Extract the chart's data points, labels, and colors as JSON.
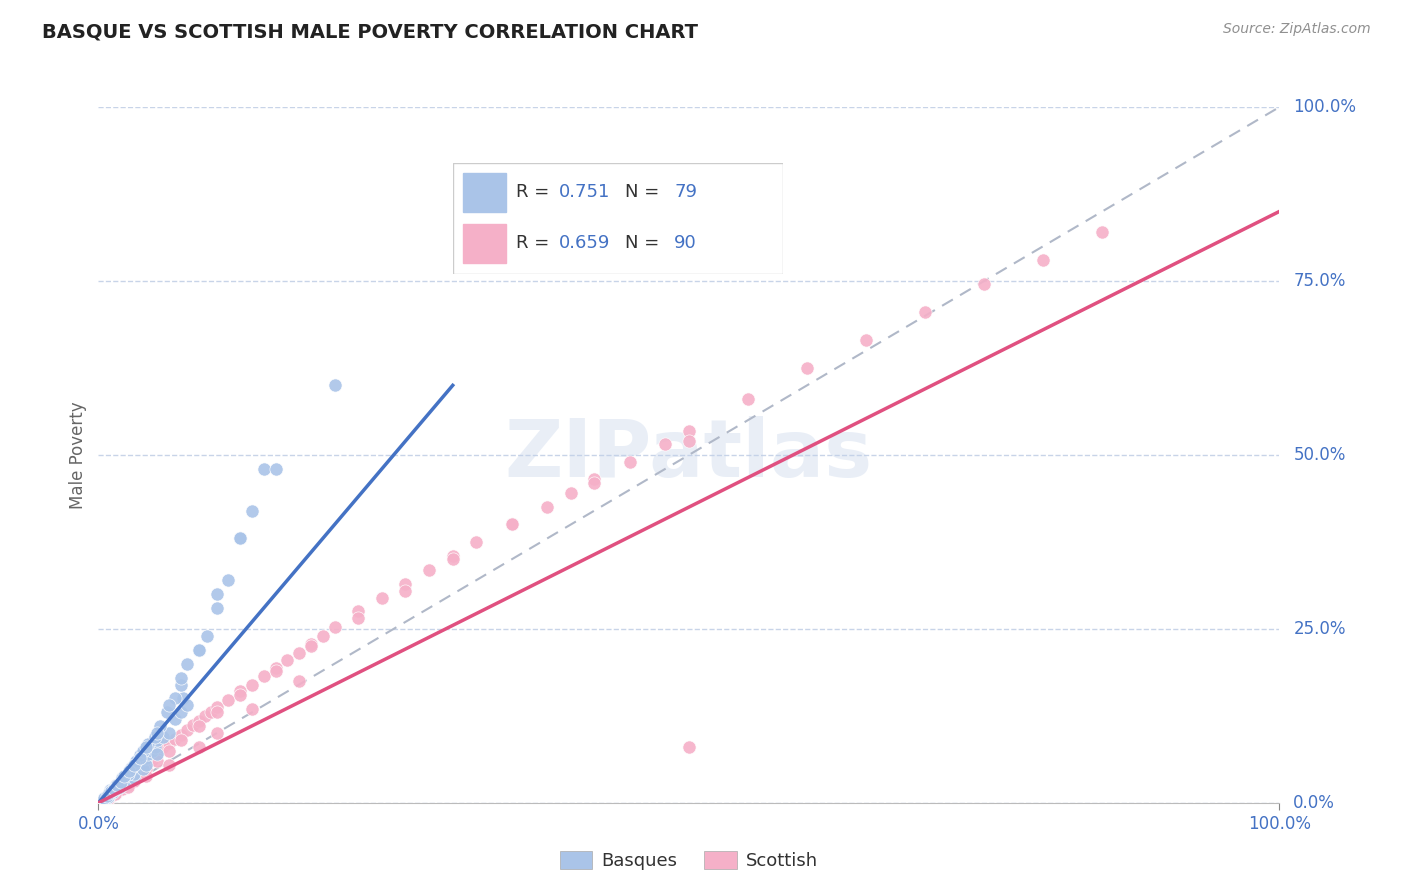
{
  "title": "BASQUE VS SCOTTISH MALE POVERTY CORRELATION CHART",
  "source": "Source: ZipAtlas.com",
  "ylabel": "Male Poverty",
  "xlim": [
    0,
    1
  ],
  "ylim": [
    0,
    1
  ],
  "basque_R": 0.751,
  "basque_N": 79,
  "scottish_R": 0.659,
  "scottish_N": 90,
  "basque_color": "#aac4e8",
  "scottish_color": "#f5b0c8",
  "basque_line_color": "#4472c4",
  "scottish_line_color": "#e05080",
  "diagonal_color": "#b0b8c8",
  "grid_color": "#c8d4e8",
  "title_color": "#222222",
  "source_color": "#909090",
  "legend_text_color": "#4472c4",
  "basque_line_x": [
    0.0,
    0.3
  ],
  "basque_line_y": [
    0.0,
    0.6
  ],
  "scottish_line_x": [
    0.0,
    1.0
  ],
  "scottish_line_y": [
    0.0,
    0.85
  ],
  "basque_scatter_x": [
    0.005,
    0.008,
    0.01,
    0.01,
    0.012,
    0.015,
    0.015,
    0.018,
    0.02,
    0.02,
    0.02,
    0.022,
    0.025,
    0.025,
    0.028,
    0.03,
    0.03,
    0.03,
    0.032,
    0.035,
    0.038,
    0.04,
    0.04,
    0.042,
    0.045,
    0.048,
    0.05,
    0.05,
    0.055,
    0.06,
    0.065,
    0.07,
    0.072,
    0.075,
    0.008,
    0.01,
    0.012,
    0.015,
    0.018,
    0.02,
    0.025,
    0.028,
    0.032,
    0.035,
    0.038,
    0.042,
    0.048,
    0.052,
    0.058,
    0.065,
    0.07,
    0.075,
    0.085,
    0.092,
    0.1,
    0.11,
    0.12,
    0.13,
    0.14,
    0.005,
    0.007,
    0.009,
    0.011,
    0.013,
    0.016,
    0.019,
    0.022,
    0.026,
    0.03,
    0.035,
    0.04,
    0.05,
    0.06,
    0.07,
    0.085,
    0.1,
    0.12,
    0.15,
    0.2
  ],
  "basque_scatter_y": [
    0.006,
    0.009,
    0.012,
    0.018,
    0.015,
    0.02,
    0.025,
    0.022,
    0.03,
    0.035,
    0.025,
    0.028,
    0.04,
    0.032,
    0.045,
    0.035,
    0.05,
    0.042,
    0.055,
    0.06,
    0.048,
    0.065,
    0.055,
    0.07,
    0.075,
    0.08,
    0.09,
    0.07,
    0.095,
    0.1,
    0.12,
    0.13,
    0.15,
    0.14,
    0.008,
    0.015,
    0.018,
    0.022,
    0.028,
    0.035,
    0.042,
    0.05,
    0.06,
    0.068,
    0.075,
    0.085,
    0.095,
    0.11,
    0.13,
    0.15,
    0.17,
    0.2,
    0.22,
    0.24,
    0.28,
    0.32,
    0.38,
    0.42,
    0.48,
    0.007,
    0.01,
    0.014,
    0.017,
    0.02,
    0.025,
    0.03,
    0.038,
    0.045,
    0.055,
    0.065,
    0.08,
    0.1,
    0.14,
    0.18,
    0.22,
    0.3,
    0.38,
    0.48,
    0.6
  ],
  "scottish_scatter_x": [
    0.005,
    0.008,
    0.01,
    0.012,
    0.015,
    0.018,
    0.02,
    0.022,
    0.025,
    0.028,
    0.03,
    0.032,
    0.035,
    0.038,
    0.04,
    0.042,
    0.045,
    0.048,
    0.05,
    0.055,
    0.06,
    0.065,
    0.07,
    0.075,
    0.08,
    0.085,
    0.09,
    0.095,
    0.1,
    0.11,
    0.12,
    0.13,
    0.14,
    0.15,
    0.16,
    0.17,
    0.18,
    0.19,
    0.2,
    0.22,
    0.24,
    0.26,
    0.28,
    0.3,
    0.32,
    0.35,
    0.38,
    0.4,
    0.42,
    0.45,
    0.48,
    0.5,
    0.55,
    0.6,
    0.65,
    0.7,
    0.75,
    0.8,
    0.85,
    0.01,
    0.015,
    0.02,
    0.025,
    0.03,
    0.035,
    0.04,
    0.05,
    0.06,
    0.07,
    0.085,
    0.1,
    0.12,
    0.15,
    0.18,
    0.22,
    0.26,
    0.3,
    0.35,
    0.42,
    0.5,
    0.008,
    0.014,
    0.025,
    0.04,
    0.06,
    0.085,
    0.1,
    0.13,
    0.17,
    0.5
  ],
  "scottish_scatter_y": [
    0.004,
    0.007,
    0.01,
    0.014,
    0.016,
    0.02,
    0.024,
    0.027,
    0.03,
    0.035,
    0.038,
    0.042,
    0.046,
    0.05,
    0.055,
    0.058,
    0.062,
    0.068,
    0.072,
    0.08,
    0.086,
    0.092,
    0.098,
    0.105,
    0.112,
    0.118,
    0.125,
    0.13,
    0.138,
    0.148,
    0.16,
    0.17,
    0.182,
    0.194,
    0.205,
    0.216,
    0.228,
    0.24,
    0.252,
    0.275,
    0.295,
    0.315,
    0.335,
    0.355,
    0.375,
    0.4,
    0.425,
    0.445,
    0.465,
    0.49,
    0.515,
    0.535,
    0.58,
    0.625,
    0.665,
    0.705,
    0.745,
    0.78,
    0.82,
    0.008,
    0.014,
    0.02,
    0.026,
    0.032,
    0.04,
    0.048,
    0.06,
    0.075,
    0.09,
    0.11,
    0.13,
    0.155,
    0.19,
    0.225,
    0.265,
    0.305,
    0.35,
    0.4,
    0.46,
    0.52,
    0.006,
    0.012,
    0.022,
    0.038,
    0.055,
    0.08,
    0.1,
    0.135,
    0.175,
    0.08
  ]
}
